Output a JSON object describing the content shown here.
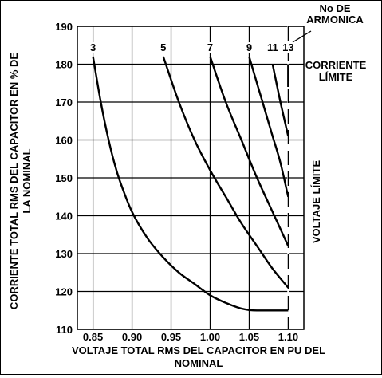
{
  "chart_data": {
    "type": "line",
    "xlabel_lines": [
      "VOLTAJE TOTAL RMS DEL CAPACITOR EN PU DEL",
      "NOMINAL"
    ],
    "ylabel_lines": [
      "CORRIENTE TOTAL RMS DEL CAPACITOR EN % DE",
      "LA NOMINAL"
    ],
    "xlim": [
      0.83,
      1.12
    ],
    "ylim": [
      110,
      190
    ],
    "x_ticks": [
      "0.85",
      "0.90",
      "0.95",
      "1.00",
      "1.05",
      "1.10"
    ],
    "y_ticks": [
      "110",
      "120",
      "130",
      "140",
      "150",
      "160",
      "170",
      "180",
      "190"
    ],
    "grid": true,
    "annotations": {
      "harmonic_header_lines": [
        "No DE",
        "ARMONICA"
      ],
      "current_limit_lines": [
        "CORRIENTE",
        "LÍMITE"
      ],
      "voltage_limit": "VOLTAJE LÍMITE"
    },
    "current_limit_value": 180,
    "voltage_limit_value": 1.1,
    "series": [
      {
        "name": "3",
        "x": [
          0.85,
          0.86,
          0.87,
          0.88,
          0.89,
          0.9,
          0.92,
          0.94,
          0.96,
          0.98,
          1.0,
          1.02,
          1.04,
          1.06,
          1.08,
          1.1
        ],
        "y": [
          182,
          170,
          160,
          152,
          146,
          141,
          134,
          129,
          125,
          122,
          119,
          117,
          115.5,
          115,
          115,
          115
        ]
      },
      {
        "name": "5",
        "x": [
          0.94,
          0.96,
          0.98,
          1.0,
          1.02,
          1.04,
          1.06,
          1.08,
          1.1
        ],
        "y": [
          182,
          170,
          160,
          152,
          145,
          138,
          132,
          126,
          121
        ]
      },
      {
        "name": "7",
        "x": [
          1.0,
          1.02,
          1.04,
          1.06,
          1.08,
          1.1
        ],
        "y": [
          182,
          170,
          160,
          150,
          141,
          132
        ]
      },
      {
        "name": "9",
        "x": [
          1.05,
          1.06,
          1.07,
          1.08,
          1.09,
          1.1
        ],
        "y": [
          182,
          175,
          168,
          161,
          154,
          145
        ]
      },
      {
        "name": "11",
        "x": [
          1.08,
          1.09,
          1.1
        ],
        "y": [
          180,
          170,
          161
        ]
      },
      {
        "name": "13",
        "x": [
          1.1
        ],
        "y": [
          174
        ]
      }
    ]
  }
}
